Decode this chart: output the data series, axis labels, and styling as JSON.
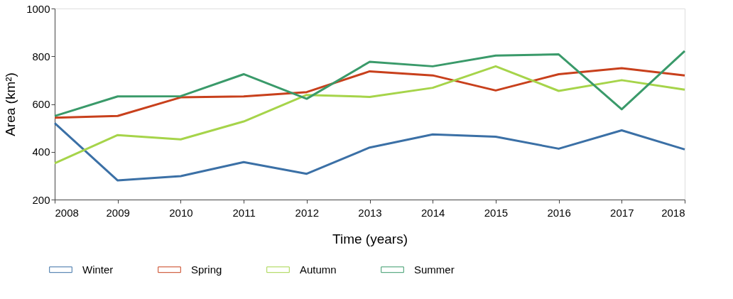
{
  "chart_data": {
    "type": "line",
    "xlabel": "Time (years)",
    "ylabel": "Area (km²)",
    "x": [
      2008,
      2009,
      2010,
      2011,
      2012,
      2013,
      2014,
      2015,
      2016,
      2017,
      2018
    ],
    "xlim": [
      2008,
      2018
    ],
    "xticks": [
      2008,
      2009,
      2010,
      2011,
      2012,
      2013,
      2014,
      2015,
      2016,
      2017,
      2018
    ],
    "ylim": [
      200,
      1000
    ],
    "yticks": [
      200,
      400,
      600,
      800,
      1000
    ],
    "grid": false,
    "legend": "bottom",
    "marker": "none",
    "line_style": "solid",
    "series": [
      {
        "name": "Winter",
        "color": "#3b70a6",
        "values": [
          520,
          280,
          298,
          357,
          308,
          418,
          473,
          463,
          413,
          490,
          410
        ]
      },
      {
        "name": "Spring",
        "color": "#c8401c",
        "values": [
          543,
          550,
          628,
          632,
          650,
          737,
          720,
          657,
          725,
          750,
          720
        ]
      },
      {
        "name": "Autumn",
        "color": "#a6d44a",
        "values": [
          352,
          470,
          452,
          527,
          638,
          630,
          668,
          758,
          655,
          700,
          660
        ]
      },
      {
        "name": "Summer",
        "color": "#3a9a6a",
        "values": [
          550,
          632,
          633,
          725,
          622,
          777,
          758,
          803,
          808,
          578,
          822
        ]
      }
    ]
  }
}
